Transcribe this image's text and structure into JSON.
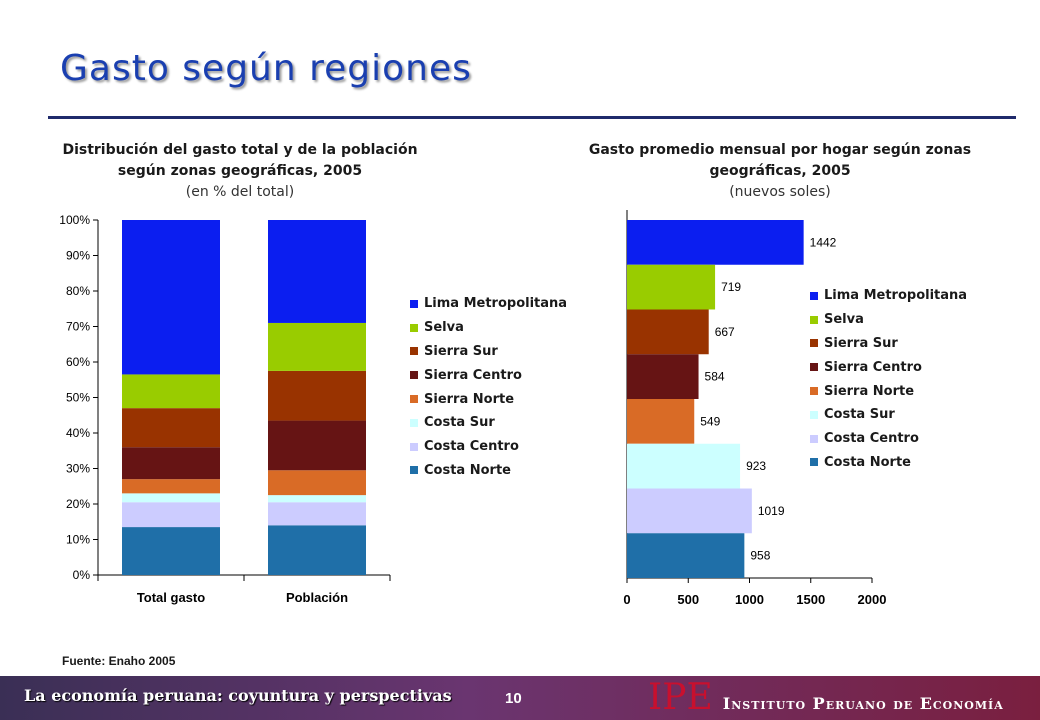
{
  "slide": {
    "title": "Gasto según regiones",
    "source": "Fuente: Enaho 2005"
  },
  "footer": {
    "tagline": "La economía peruana: coyuntura y perspectivas",
    "page": "10",
    "logo_mark": "IPE",
    "logo_name": "Instituto Peruano de Economía"
  },
  "charts": {
    "left": {
      "title": "Distribución del gasto total y de la población según zonas geográficas, 2005",
      "subtitle": "(en % del total)"
    },
    "right": {
      "title": "Gasto promedio mensual por hogar según zonas geográficas, 2005",
      "subtitle": "(nuevos soles)"
    }
  },
  "legend": [
    {
      "name": "Lima Metropolitana",
      "color": "#0b1ef0"
    },
    {
      "name": "Selva",
      "color": "#99cc00"
    },
    {
      "name": "Sierra Sur",
      "color": "#993300"
    },
    {
      "name": "Sierra Centro",
      "color": "#661414"
    },
    {
      "name": "Sierra Norte",
      "color": "#d96b26"
    },
    {
      "name": "Costa Sur",
      "color": "#ccffff"
    },
    {
      "name": "Costa Centro",
      "color": "#ccccff"
    },
    {
      "name": "Costa Norte",
      "color": "#1f6fa8"
    }
  ],
  "chart_data": [
    {
      "type": "bar",
      "stacked": true,
      "percent_stacked": true,
      "categories": [
        "Total gasto",
        "Población"
      ],
      "y_ticks": [
        "0%",
        "10%",
        "20%",
        "30%",
        "40%",
        "50%",
        "60%",
        "70%",
        "80%",
        "90%",
        "100%"
      ],
      "ylim": [
        0,
        100
      ],
      "legend_position": "right",
      "series": [
        {
          "name": "Costa Norte",
          "color": "#1f6fa8",
          "values": [
            13.5,
            14.0
          ]
        },
        {
          "name": "Costa Centro",
          "color": "#ccccff",
          "values": [
            7.0,
            6.5
          ]
        },
        {
          "name": "Costa Sur",
          "color": "#ccffff",
          "values": [
            2.5,
            2.0
          ]
        },
        {
          "name": "Sierra Norte",
          "color": "#d96b26",
          "values": [
            4.0,
            7.0
          ]
        },
        {
          "name": "Sierra Centro",
          "color": "#661414",
          "values": [
            9.0,
            14.0
          ]
        },
        {
          "name": "Sierra Sur",
          "color": "#993300",
          "values": [
            11.0,
            14.0
          ]
        },
        {
          "name": "Selva",
          "color": "#99cc00",
          "values": [
            9.5,
            13.5
          ]
        },
        {
          "name": "Lima Metropolitana",
          "color": "#0b1ef0",
          "values": [
            43.5,
            29.0
          ]
        }
      ]
    },
    {
      "type": "bar",
      "orientation": "horizontal",
      "categories": [
        "Lima Metropolitana",
        "Selva",
        "Sierra Sur",
        "Sierra Centro",
        "Sierra Norte",
        "Costa Sur",
        "Costa Centro",
        "Costa Norte"
      ],
      "values": [
        1442,
        719,
        667,
        584,
        549,
        923,
        1019,
        958
      ],
      "colors": [
        "#0b1ef0",
        "#99cc00",
        "#993300",
        "#661414",
        "#d96b26",
        "#ccffff",
        "#ccccff",
        "#1f6fa8"
      ],
      "x_ticks": [
        "0",
        "500",
        "1000",
        "1500",
        "2000"
      ],
      "xlim": [
        0,
        2000
      ],
      "data_labels": true,
      "legend_position": "right"
    }
  ]
}
